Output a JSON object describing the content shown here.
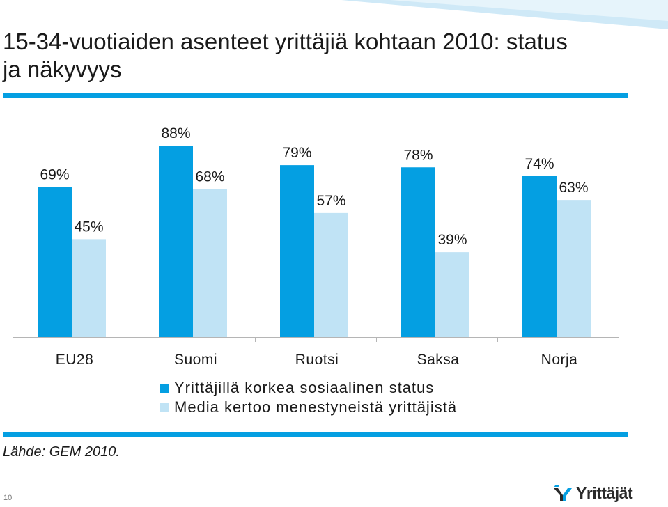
{
  "title": "15-34-vuotiaiden asenteet yrittäjiä kohtaan 2010: status ja näkyvyys",
  "colors": {
    "series1": "#049fe2",
    "series2": "#c0e3f5",
    "accent": "#049fe2",
    "text": "#1a1a1a"
  },
  "chart_data": {
    "type": "bar",
    "title": "",
    "xlabel": "",
    "ylabel": "",
    "ylim": [
      0,
      100
    ],
    "grid": false,
    "legend_position": "bottom",
    "categories": [
      "EU28",
      "Suomi",
      "Ruotsi",
      "Saksa",
      "Norja"
    ],
    "series": [
      {
        "name": "Yrittäjillä korkea sosiaalinen status",
        "values": [
          69,
          88,
          79,
          78,
          74
        ],
        "labels": [
          "69%",
          "88%",
          "79%",
          "78%",
          "74%"
        ]
      },
      {
        "name": "Media kertoo menestyneistä yrittäjistä",
        "values": [
          45,
          68,
          57,
          39,
          63
        ],
        "labels": [
          "45%",
          "68%",
          "57%",
          "39%",
          "63%"
        ]
      }
    ]
  },
  "source": "Lähde: GEM 2010.",
  "page_number": "10",
  "logo": {
    "text": "Yrittäjät",
    "icon": "yrittajat-logo-icon"
  }
}
